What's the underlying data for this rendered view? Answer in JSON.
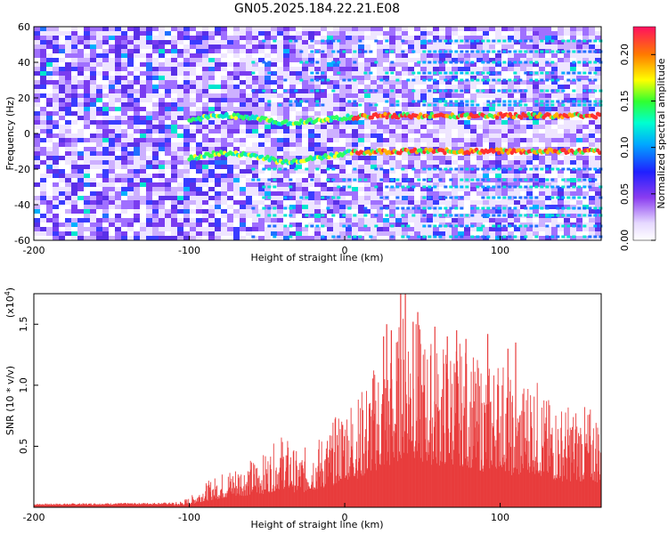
{
  "title": "GN05.2025.184.22.21.E08",
  "colors": {
    "bar": "#e83c3c",
    "axis": "#000000"
  },
  "chart_data": [
    {
      "type": "heatmap",
      "xlabel": "Height of straight line (km)",
      "ylabel": "Frequency (Hz)",
      "xlim": [
        -200,
        165
      ],
      "ylim": [
        -60,
        60
      ],
      "xticks": [
        -200,
        -100,
        0,
        100
      ],
      "yticks": [
        60,
        40,
        20,
        0,
        -20,
        -40,
        -60
      ],
      "colorbar": {
        "label": "Normalized spectral amplitude",
        "range": [
          0,
          0.23
        ],
        "ticks": [
          "0.00",
          "0.05",
          "0.10",
          "0.15",
          "0.20"
        ]
      },
      "ridges": [
        {
          "x": [
            -100,
            -80,
            -60,
            -40,
            -20,
            0,
            20,
            40,
            60,
            80,
            100,
            120,
            140,
            165
          ],
          "y": [
            8,
            10,
            9,
            6,
            7,
            9,
            10,
            10,
            10,
            10,
            10,
            10,
            10,
            10
          ]
        },
        {
          "x": [
            -100,
            -80,
            -60,
            -40,
            -20,
            0,
            20,
            40,
            60,
            80,
            100,
            120,
            140,
            165
          ],
          "y": [
            -14,
            -11,
            -12,
            -16,
            -14,
            -11,
            -10,
            -10,
            -10,
            -10,
            -10,
            -10,
            -10,
            -10
          ]
        }
      ],
      "lines_hz": [
        52,
        46,
        40,
        34,
        30,
        24,
        18,
        16,
        -20,
        -26,
        -30,
        -36,
        -42,
        -46,
        -52,
        -58
      ]
    },
    {
      "type": "area",
      "xlabel": "Height of straight line (km)",
      "ylabel": "SNR (10 * v/v)",
      "exponent_label": "(x10",
      "exponent_sup": "4",
      "xlim": [
        -200,
        165
      ],
      "ylim": [
        0,
        1.75
      ],
      "xticks": [
        -200,
        -100,
        0,
        100
      ],
      "yticks": [
        0.5,
        1.0,
        1.5
      ],
      "ytick_labels": [
        "0.5",
        "1.0",
        "1.5"
      ],
      "envelope": {
        "x": [
          -200,
          -110,
          -100,
          -90,
          -80,
          -70,
          -60,
          -50,
          -40,
          -30,
          -20,
          -10,
          0,
          10,
          20,
          30,
          40,
          50,
          60,
          70,
          80,
          90,
          100,
          110,
          120,
          130,
          140,
          150,
          165
        ],
        "y": [
          0.03,
          0.04,
          0.08,
          0.2,
          0.28,
          0.35,
          0.4,
          0.45,
          0.62,
          0.45,
          0.55,
          0.65,
          0.9,
          0.95,
          1.2,
          1.3,
          1.75,
          1.45,
          1.35,
          1.4,
          1.3,
          1.15,
          1.3,
          0.95,
          1.15,
          0.9,
          0.85,
          0.85,
          0.8
        ]
      },
      "peaks": [
        {
          "x": 25,
          "y": 1.4
        },
        {
          "x": 27,
          "y": 1.5
        },
        {
          "x": 30,
          "y": 1.45
        },
        {
          "x": 36,
          "y": 1.75
        },
        {
          "x": 39,
          "y": 1.75
        },
        {
          "x": 44,
          "y": 1.52
        },
        {
          "x": 47,
          "y": 1.6
        },
        {
          "x": 58,
          "y": 1.48
        },
        {
          "x": 66,
          "y": 1.4
        },
        {
          "x": 72,
          "y": 1.45
        },
        {
          "x": 78,
          "y": 1.38
        },
        {
          "x": 92,
          "y": 1.42
        },
        {
          "x": 105,
          "y": 1.3
        },
        {
          "x": 110,
          "y": 1.35
        }
      ]
    }
  ]
}
